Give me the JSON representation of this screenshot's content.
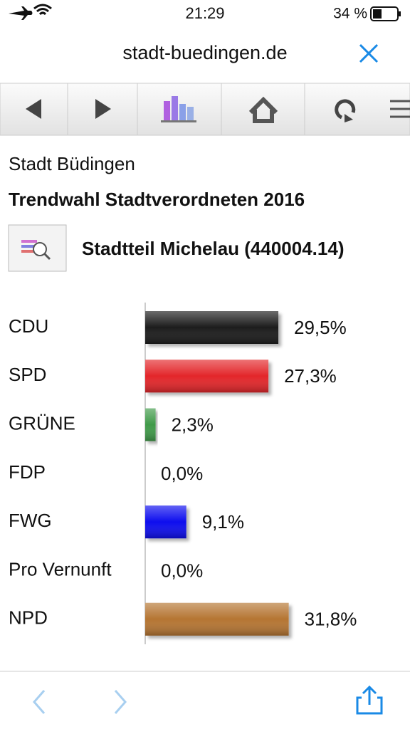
{
  "status_bar": {
    "time": "21:29",
    "battery": "34 %"
  },
  "browser": {
    "url": "stadt-buedingen.de"
  },
  "page": {
    "site": "Stadt Büdingen",
    "title": "Trendwahl Stadtverordneten 2016",
    "district": "Stadtteil Michelau (440004.14)"
  },
  "chart_data": {
    "type": "bar",
    "orientation": "horizontal",
    "categories": [
      "CDU",
      "SPD",
      "GRÜNE",
      "FDP",
      "FWG",
      "Pro Vernunft",
      "NPD"
    ],
    "values": [
      29.5,
      27.3,
      2.3,
      0,
      9.1,
      0,
      31.8
    ],
    "value_labels": [
      "29,5%",
      "27,3%",
      "2,3%",
      "0,0%",
      "9,1%",
      "0,0%",
      "31,8%"
    ],
    "colors": [
      "#1e1e1e",
      "#e3262b",
      "#3f9a48",
      null,
      "#0a0aee",
      null,
      "#b57432"
    ],
    "xlim": [
      0,
      50
    ]
  }
}
